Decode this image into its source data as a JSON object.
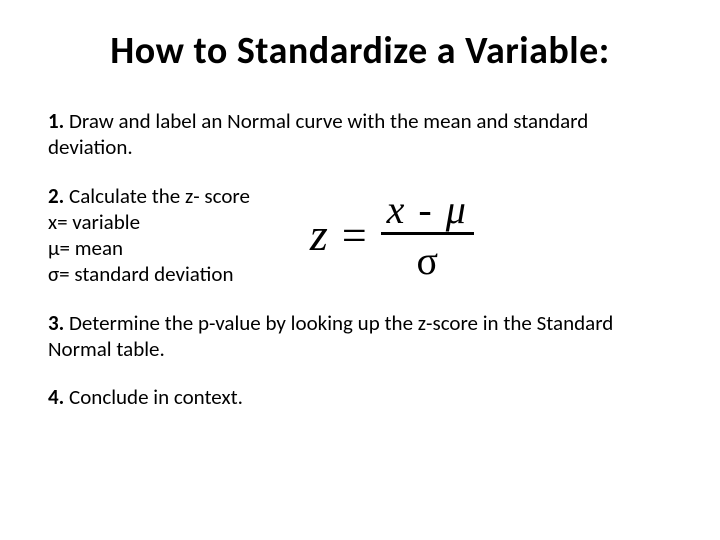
{
  "title": "How to Standardize a Variable:",
  "steps": {
    "s1": {
      "num": "1.",
      "text": "Draw and label an Normal curve with the mean and standard deviation."
    },
    "s2": {
      "num": "2.",
      "header": "Calculate the z- score",
      "lines": {
        "l1": "x= variable",
        "l2": "μ= mean",
        "l3": "σ= standard deviation"
      },
      "formula": {
        "z": "z",
        "eq": "=",
        "numerator": "x - μ",
        "denominator": "σ"
      }
    },
    "s3": {
      "num": "3.",
      "text": "Determine the p-value by looking up the z-score in the Standard Normal table."
    },
    "s4": {
      "num": "4.",
      "text": "Conclude in context."
    }
  },
  "colors": {
    "background": "#ffffff",
    "text": "#000000"
  },
  "typography": {
    "title_fontsize": 38,
    "body_fontsize": 21,
    "formula_fontsize": 46,
    "font_family_body": "Calibri",
    "font_family_formula": "Times New Roman"
  }
}
